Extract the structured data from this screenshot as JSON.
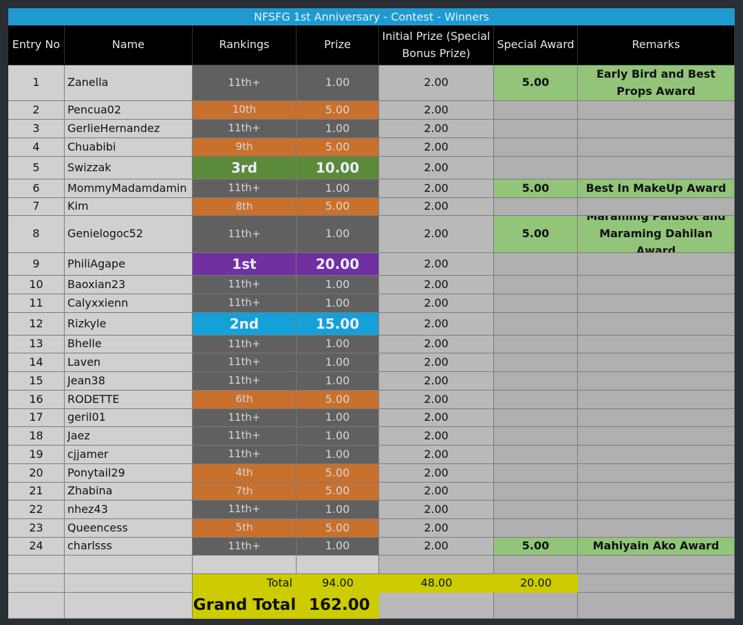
{
  "table": {
    "title": "NFSFG 1st Anniversary - Contest - Winners",
    "columns": [
      "Entry No",
      "Name",
      "Rankings",
      "Prize",
      "Initial Prize (Special Bonus Prize)",
      "Special Award",
      "Remarks"
    ],
    "rows": [
      {
        "entry": "1",
        "name": "Zanella",
        "ranking": "11th+",
        "prize": "1.00",
        "initial_prize": "2.00",
        "special_award": "5.00",
        "remarks": "Early Bird and Best Props Award",
        "rank_color": "#606060"
      },
      {
        "entry": "2",
        "name": "Pencua02",
        "ranking": "10th",
        "prize": "5.00",
        "initial_prize": "2.00",
        "rank_color": "#c8702e"
      },
      {
        "entry": "3",
        "name": "GerlieHernandez",
        "ranking": "11th+",
        "prize": "1.00",
        "initial_prize": "2.00",
        "rank_color": "#606060"
      },
      {
        "entry": "4",
        "name": "Chuabibi",
        "ranking": "9th",
        "prize": "5.00",
        "initial_prize": "2.00",
        "rank_color": "#c8702e"
      },
      {
        "entry": "5",
        "name": "Swizzak",
        "ranking": "3rd",
        "prize": "10.00",
        "initial_prize": "2.00",
        "rank_color": "#5a8a3a",
        "rank_bold": true
      },
      {
        "entry": "6",
        "name": "MommyMadamdamin",
        "ranking": "11th+",
        "prize": "1.00",
        "initial_prize": "2.00",
        "special_award": "5.00",
        "remarks": "Best In MakeUp Award",
        "rank_color": "#606060"
      },
      {
        "entry": "7",
        "name": "Kim",
        "ranking": "8th",
        "prize": "5.00",
        "initial_prize": "2.00",
        "rank_color": "#c8702e"
      },
      {
        "entry": "8",
        "name": "Genielogoc52",
        "ranking": "11th+",
        "prize": "1.00",
        "initial_prize": "2.00",
        "special_award": "5.00",
        "remarks": "Maraming Palusot and Maraming Dahilan Award",
        "rank_color": "#606060"
      },
      {
        "entry": "9",
        "name": "PhiliAgape",
        "ranking": "1st",
        "prize": "20.00",
        "initial_prize": "2.00",
        "rank_color": "#7030a0",
        "rank_bold": true
      },
      {
        "entry": "10",
        "name": "Baoxian23",
        "ranking": "11th+",
        "prize": "1.00",
        "initial_prize": "2.00",
        "rank_color": "#606060"
      },
      {
        "entry": "11",
        "name": "Calyxxienn",
        "ranking": "11th+",
        "prize": "1.00",
        "initial_prize": "2.00",
        "rank_color": "#606060"
      },
      {
        "entry": "12",
        "name": "Rizkyle",
        "ranking": "2nd",
        "prize": "15.00",
        "initial_prize": "2.00",
        "rank_color": "#14a0d8",
        "rank_bold": true
      },
      {
        "entry": "13",
        "name": "Bhelle",
        "ranking": "11th+",
        "prize": "1.00",
        "initial_prize": "2.00",
        "rank_color": "#606060"
      },
      {
        "entry": "14",
        "name": "Laven",
        "ranking": "11th+",
        "prize": "1.00",
        "initial_prize": "2.00",
        "rank_color": "#606060"
      },
      {
        "entry": "15",
        "name": "Jean38",
        "ranking": "11th+",
        "prize": "1.00",
        "initial_prize": "2.00",
        "rank_color": "#606060"
      },
      {
        "entry": "16",
        "name": "RODETTE",
        "ranking": "6th",
        "prize": "5.00",
        "initial_prize": "2.00",
        "rank_color": "#c8702e"
      },
      {
        "entry": "17",
        "name": "geril01",
        "ranking": "11th+",
        "prize": "1.00",
        "initial_prize": "2.00",
        "rank_color": "#606060"
      },
      {
        "entry": "18",
        "name": "Jaez",
        "ranking": "11th+",
        "prize": "1.00",
        "initial_prize": "2.00",
        "rank_color": "#606060"
      },
      {
        "entry": "19",
        "name": "cjjamer",
        "ranking": "11th+",
        "prize": "1.00",
        "initial_prize": "2.00",
        "rank_color": "#606060"
      },
      {
        "entry": "20",
        "name": "Ponytail29",
        "ranking": "4th",
        "prize": "5.00",
        "initial_prize": "2.00",
        "rank_color": "#c8702e"
      },
      {
        "entry": "21",
        "name": "Zhabina",
        "ranking": "7th",
        "prize": "5.00",
        "initial_prize": "2.00",
        "rank_color": "#c8702e"
      },
      {
        "entry": "22",
        "name": "nhez43",
        "ranking": "11th+",
        "prize": "1.00",
        "initial_prize": "2.00",
        "rank_color": "#606060"
      },
      {
        "entry": "23",
        "name": "Queencess",
        "ranking": "5th",
        "prize": "5.00",
        "initial_prize": "2.00",
        "rank_color": "#c8702e"
      },
      {
        "entry": "24",
        "name": "charlsss",
        "ranking": "11th+",
        "prize": "1.00",
        "initial_prize": "2.00",
        "special_award": "5.00",
        "remarks": "Mahiyain Ako Award",
        "rank_color": "#606060"
      }
    ],
    "totals": {
      "label": "Total",
      "prize": "94.00",
      "initial_prize": "48.00",
      "special_award": "20.00"
    },
    "grand_total": {
      "label": "Grand Total",
      "value": "162.00"
    }
  }
}
